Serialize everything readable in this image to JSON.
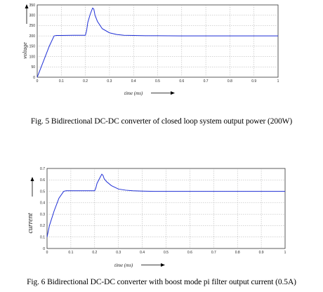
{
  "figures": [
    {
      "caption": "Fig. 5  Bidirectional DC-DC converter of closed loop system output power (200W)",
      "chart_data": {
        "type": "line",
        "xlabel": "time (ms)",
        "ylabel": "voltage",
        "xlim": [
          0,
          1
        ],
        "ylim": [
          0,
          350
        ],
        "xticks": [
          "0",
          "0.1",
          "0.2",
          "0.3",
          "0.4",
          "0.5",
          "0.6",
          "0.7",
          "0.8",
          "0.9",
          "1"
        ],
        "yticks": [
          "0",
          "50",
          "100",
          "150",
          "200",
          "250",
          "300",
          "350"
        ],
        "grid": true,
        "line_color": "#1f2fd6",
        "series": [
          {
            "x": [
              0,
              0.01,
              0.03,
              0.05,
              0.07,
              0.08,
              0.1,
              0.15,
              0.2,
              0.205,
              0.21,
              0.22,
              0.23,
              0.235,
              0.24,
              0.25,
              0.27,
              0.3,
              0.33,
              0.36,
              0.4,
              0.45,
              0.5,
              0.6,
              0.7,
              0.8,
              0.9,
              1.0
            ],
            "y": [
              0,
              30,
              90,
              150,
              200,
              202,
              202,
              203,
              203,
              225,
              265,
              305,
              335,
              330,
              300,
              270,
              235,
              215,
              207,
              203,
              202,
              201,
              201,
              200,
              200,
              200,
              200,
              200
            ]
          }
        ]
      }
    },
    {
      "caption": "Fig. 6   Bidirectional DC-DC converter with boost mode pi filter output current (0.5A)",
      "chart_data": {
        "type": "line",
        "xlabel": "time (ms)",
        "ylabel": "current",
        "xlim": [
          0,
          1
        ],
        "ylim": [
          0,
          0.7
        ],
        "xticks": [
          "0",
          "0.1",
          "0.2",
          "0.3",
          "0.4",
          "0.5",
          "0.6",
          "0.7",
          "0.8",
          "0.9",
          "1"
        ],
        "yticks": [
          "0",
          "0.1",
          "0.2",
          "0.3",
          "0.4",
          "0.5",
          "0.6",
          "0.7"
        ],
        "grid": true,
        "line_color": "#1f2fd6",
        "series": [
          {
            "x": [
              0,
              0.01,
              0.03,
              0.05,
              0.07,
              0.08,
              0.1,
              0.15,
              0.2,
              0.205,
              0.21,
              0.22,
              0.23,
              0.235,
              0.24,
              0.25,
              0.27,
              0.3,
              0.33,
              0.36,
              0.4,
              0.45,
              0.5,
              0.6,
              0.7,
              0.8,
              0.9,
              1.0
            ],
            "y": [
              0.1,
              0.2,
              0.33,
              0.44,
              0.5,
              0.505,
              0.505,
              0.505,
              0.505,
              0.53,
              0.57,
              0.61,
              0.65,
              0.64,
              0.61,
              0.585,
              0.55,
              0.52,
              0.51,
              0.505,
              0.502,
              0.5,
              0.5,
              0.5,
              0.5,
              0.5,
              0.5,
              0.5
            ]
          }
        ]
      }
    }
  ]
}
